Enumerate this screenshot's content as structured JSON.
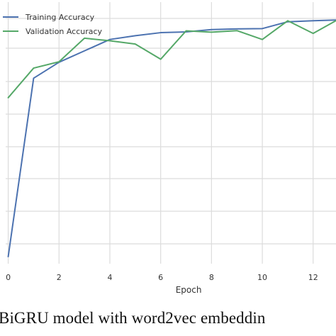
{
  "chart_data": {
    "type": "line",
    "xlabel": "Epoch",
    "x": [
      0,
      1,
      2,
      3,
      4,
      5,
      6,
      7,
      8,
      9,
      10,
      11,
      12,
      13
    ],
    "xticks": [
      0,
      2,
      4,
      6,
      8,
      10,
      12
    ],
    "xlim": [
      -0.1,
      12.9
    ],
    "ylim": [
      0,
      1
    ],
    "grid": true,
    "legend_position": "top-left",
    "series": [
      {
        "name": "Training Accuracy",
        "color": "#4c72b0",
        "values": [
          0.0,
          0.705,
          0.768,
          0.813,
          0.858,
          0.873,
          0.885,
          0.888,
          0.897,
          0.9,
          0.901,
          0.928,
          0.932,
          0.935
        ]
      },
      {
        "name": "Validation Accuracy",
        "color": "#55a868",
        "values": [
          0.628,
          0.745,
          0.77,
          0.863,
          0.853,
          0.84,
          0.78,
          0.892,
          0.887,
          0.893,
          0.858,
          0.932,
          0.882,
          0.938
        ]
      }
    ]
  },
  "caption": {
    "text": "BiGRU model with word2vec embeddin"
  }
}
